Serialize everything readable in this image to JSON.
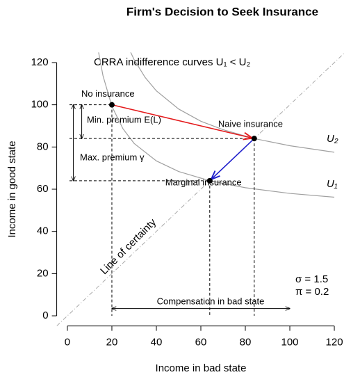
{
  "chart_data": {
    "type": "line",
    "title": "Firm's Decision to Seek Insurance",
    "xlabel": "Income in bad state",
    "ylabel": "Income in good state",
    "xlim": [
      -4.8,
      124.8
    ],
    "ylim": [
      -4.8,
      124.8
    ],
    "xticks": [
      0,
      20,
      40,
      60,
      80,
      100,
      120
    ],
    "yticks": [
      0,
      20,
      40,
      60,
      80,
      100,
      120
    ],
    "curves_caption": "CRRA indifference curves  U₁ < U₂",
    "series": [
      {
        "name": "U₁",
        "color": "#a0a0a0",
        "x": [
          14,
          16,
          20,
          25,
          30,
          40,
          50,
          64,
          80,
          100,
          120
        ],
        "values": [
          125.0,
          113.8,
          99.3,
          88.6,
          81.7,
          73.4,
          68.4,
          64,
          60.7,
          58.0,
          56.2
        ]
      },
      {
        "name": "U₂",
        "color": "#a0a0a0",
        "x": [
          28,
          30,
          35,
          40,
          50,
          60,
          70,
          84,
          100,
          120
        ],
        "values": [
          125.9,
          121.4,
          112.9,
          106.6,
          98.0,
          92.2,
          88.2,
          84.0,
          80.6,
          77.5
        ]
      }
    ],
    "points": {
      "labels": [
        "No insurance",
        "Naive insurance",
        "Marginal insurance"
      ],
      "x": [
        20,
        84,
        64
      ],
      "y": [
        100,
        84,
        64
      ]
    },
    "arrow_colors": [
      "#e41a1c",
      "#1f1fcc"
    ],
    "min_premium_label": "Min. premium E(L)",
    "max_premium_label": "Max. premium γ",
    "compensation_label": "Compensation in bad state",
    "certainty_label": "Line of certainty",
    "sigma_label": "σ = 1.5",
    "pi_label": "π = 0.2"
  }
}
